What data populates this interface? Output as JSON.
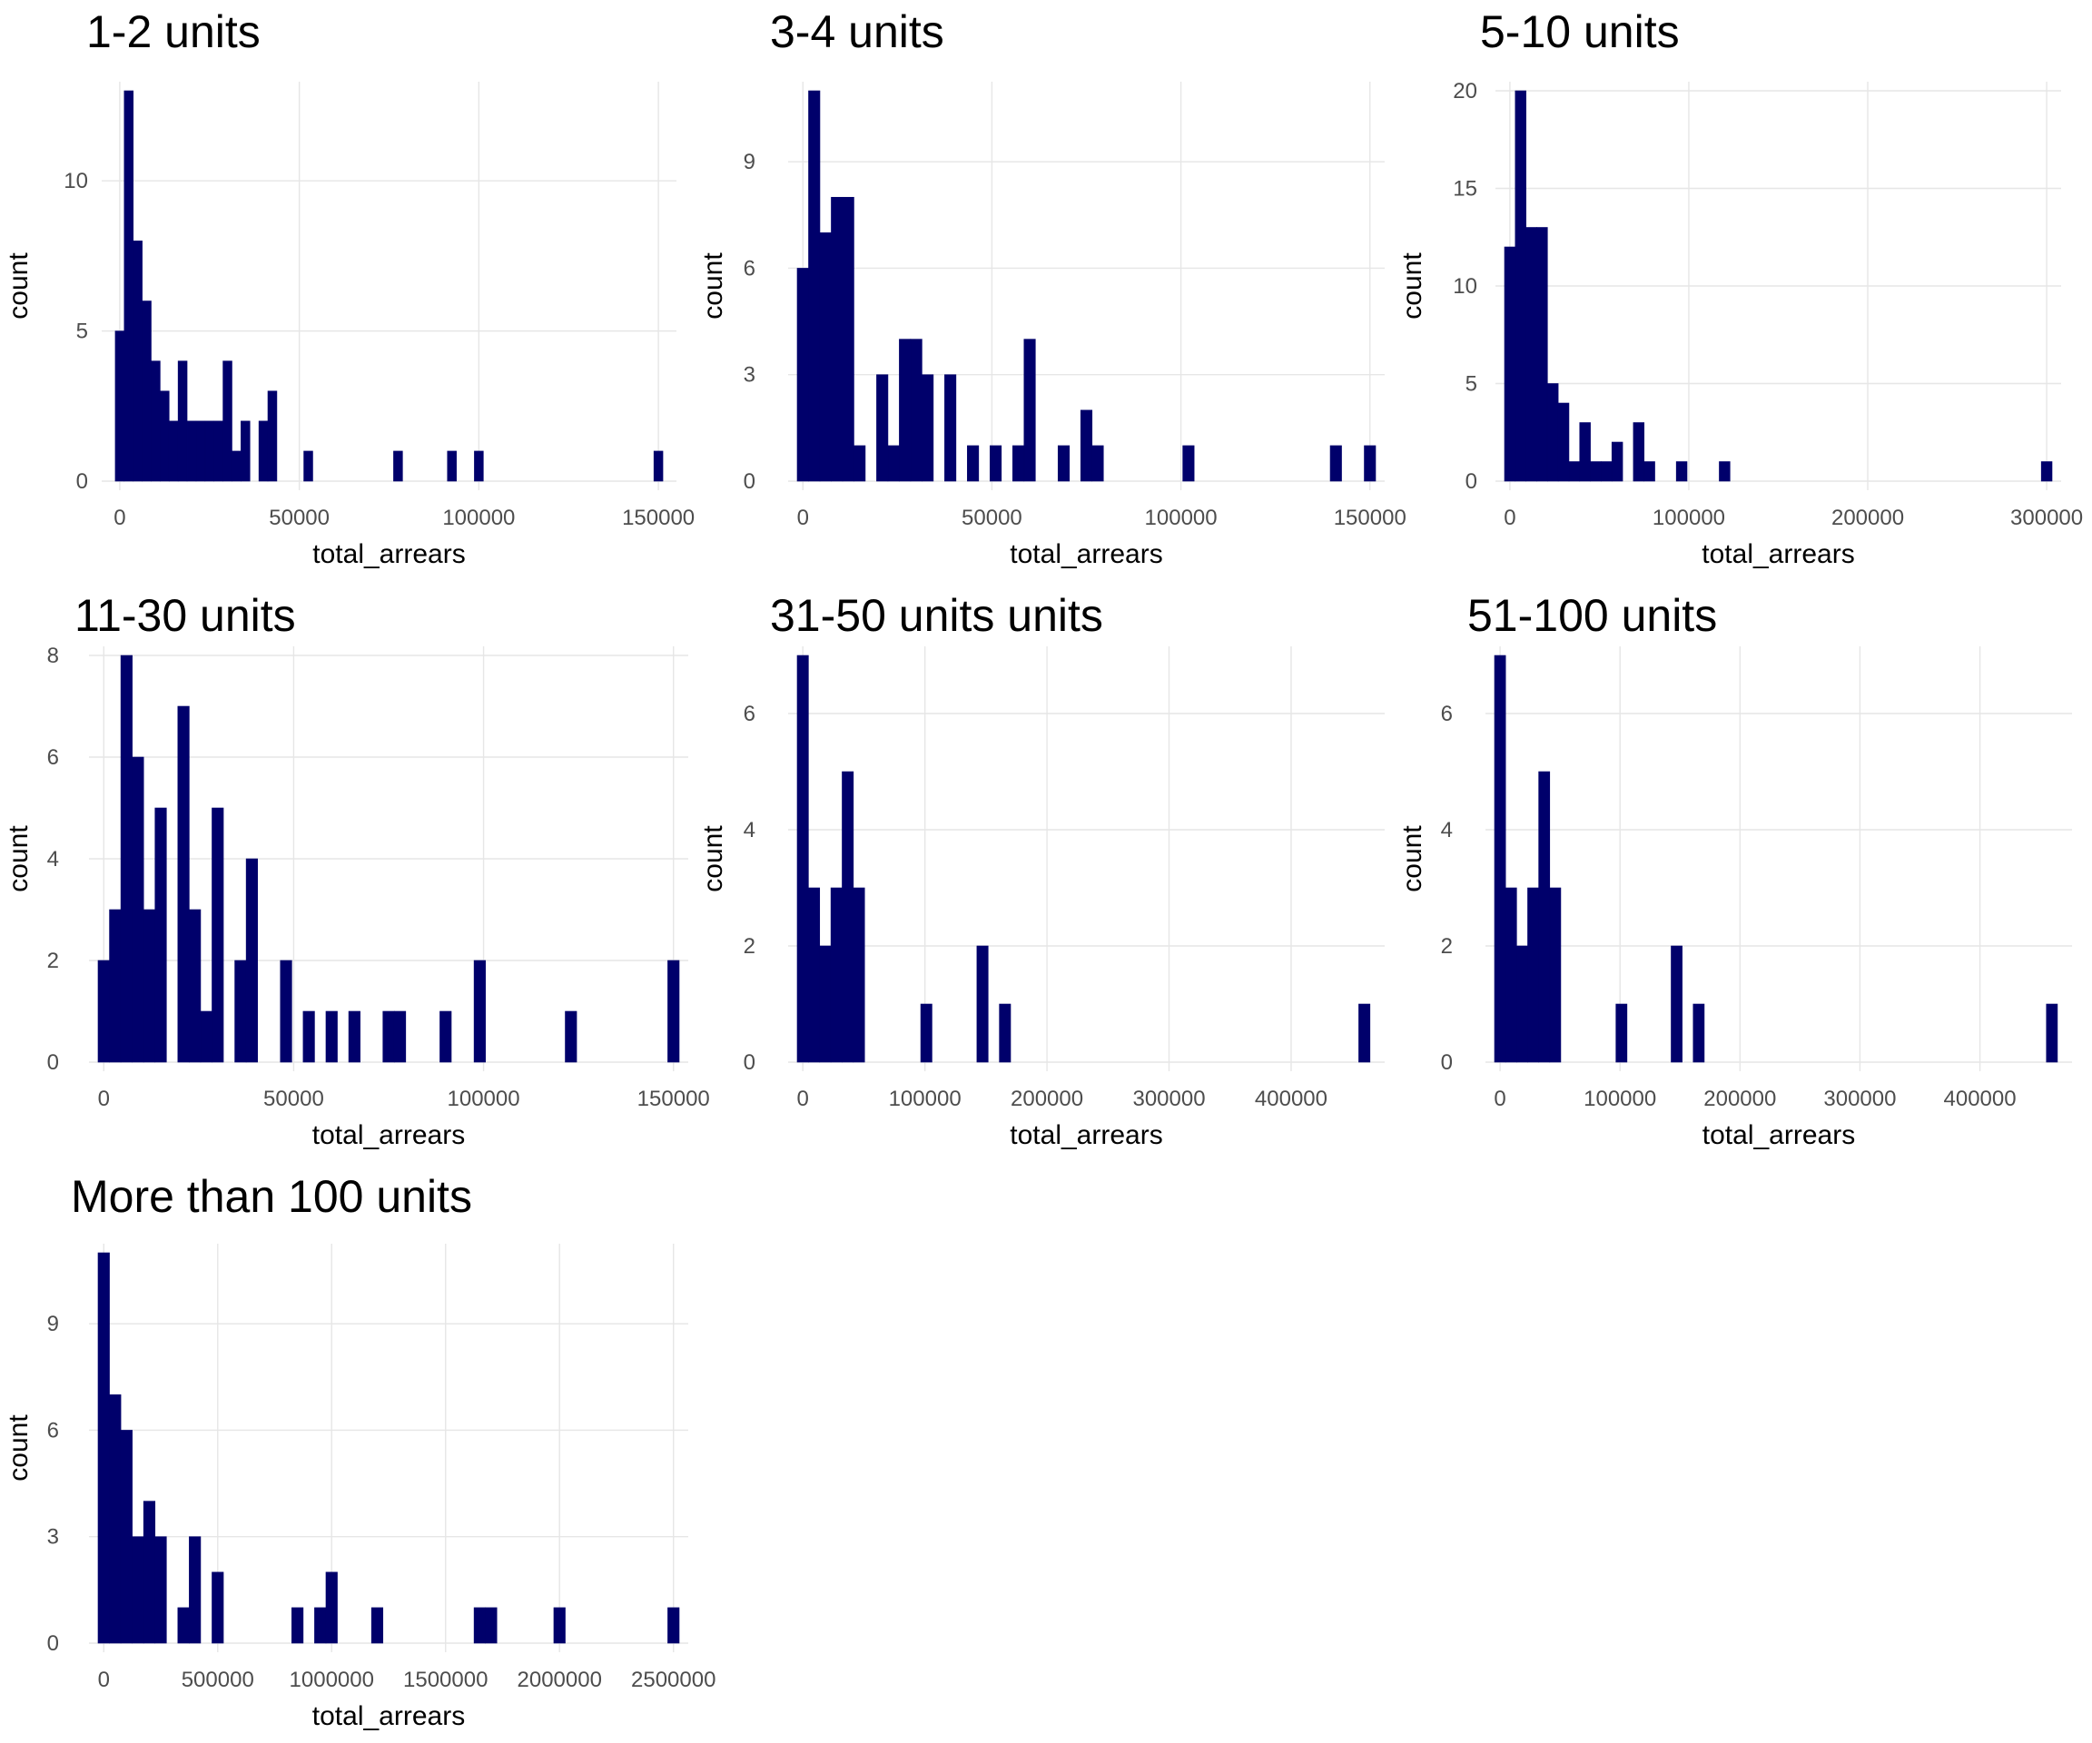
{
  "figure": {
    "bar_color": "#00006b",
    "grid_color": "#e6e6e6",
    "background": "#ffffff"
  },
  "chart_data": [
    {
      "type": "bar",
      "title": "1-2 units",
      "xlabel": "total_arrears",
      "ylabel": "count",
      "x_ticks": [
        0,
        50000,
        100000,
        150000
      ],
      "y_ticks": [
        0,
        5,
        10
      ],
      "xlim": [
        -2500,
        152500
      ],
      "ylim": [
        0,
        13
      ],
      "grid": true,
      "bin_width": 2500,
      "bins": [
        [
          0,
          5
        ],
        [
          2500,
          13
        ],
        [
          5000,
          8
        ],
        [
          7500,
          6
        ],
        [
          10000,
          4
        ],
        [
          12500,
          3
        ],
        [
          15000,
          2
        ],
        [
          17500,
          4
        ],
        [
          20000,
          2
        ],
        [
          22500,
          2
        ],
        [
          25000,
          2
        ],
        [
          27500,
          2
        ],
        [
          30000,
          4
        ],
        [
          32500,
          1
        ],
        [
          35000,
          2
        ],
        [
          40000,
          2
        ],
        [
          42500,
          3
        ],
        [
          52500,
          1
        ],
        [
          77500,
          1
        ],
        [
          92500,
          1
        ],
        [
          100000,
          1
        ],
        [
          150000,
          1
        ]
      ]
    },
    {
      "type": "bar",
      "title": "3-4 units",
      "xlabel": "total_arrears",
      "ylabel": "count",
      "x_ticks": [
        0,
        50000,
        100000,
        150000
      ],
      "y_ticks": [
        0,
        3,
        6,
        9
      ],
      "xlim": [
        -1500,
        151500
      ],
      "ylim": [
        0,
        11
      ],
      "grid": true,
      "bin_width": 3000,
      "bins": [
        [
          0,
          6
        ],
        [
          3000,
          11
        ],
        [
          6000,
          7
        ],
        [
          9000,
          8
        ],
        [
          12000,
          8
        ],
        [
          15000,
          1
        ],
        [
          21000,
          3
        ],
        [
          24000,
          1
        ],
        [
          27000,
          4
        ],
        [
          30000,
          4
        ],
        [
          33000,
          3
        ],
        [
          39000,
          3
        ],
        [
          45000,
          1
        ],
        [
          51000,
          1
        ],
        [
          57000,
          1
        ],
        [
          60000,
          4
        ],
        [
          69000,
          1
        ],
        [
          75000,
          2
        ],
        [
          78000,
          1
        ],
        [
          102000,
          1
        ],
        [
          141000,
          1
        ],
        [
          150000,
          1
        ]
      ]
    },
    {
      "type": "bar",
      "title": "5-10 units",
      "xlabel": "total_arrears",
      "ylabel": "count",
      "x_ticks": [
        0,
        100000,
        200000,
        300000
      ],
      "y_ticks": [
        0,
        5,
        10,
        15,
        20
      ],
      "xlim": [
        -3000,
        303000
      ],
      "ylim": [
        0,
        20
      ],
      "grid": true,
      "bin_width": 6000,
      "bins": [
        [
          0,
          12
        ],
        [
          6000,
          20
        ],
        [
          12000,
          13
        ],
        [
          18000,
          13
        ],
        [
          24000,
          5
        ],
        [
          30000,
          4
        ],
        [
          36000,
          1
        ],
        [
          42000,
          3
        ],
        [
          48000,
          1
        ],
        [
          54000,
          1
        ],
        [
          60000,
          2
        ],
        [
          72000,
          3
        ],
        [
          78000,
          1
        ],
        [
          96000,
          1
        ],
        [
          120000,
          1
        ],
        [
          300000,
          1
        ]
      ]
    },
    {
      "type": "bar",
      "title": "11-30 units",
      "xlabel": "total_arrears",
      "ylabel": "count",
      "x_ticks": [
        0,
        50000,
        100000,
        150000
      ],
      "y_ticks": [
        0,
        2,
        4,
        6,
        8
      ],
      "xlim": [
        -1500,
        151500
      ],
      "ylim": [
        0,
        8
      ],
      "grid": true,
      "bin_width": 3000,
      "bins": [
        [
          0,
          2
        ],
        [
          3000,
          3
        ],
        [
          6000,
          8
        ],
        [
          9000,
          6
        ],
        [
          12000,
          3
        ],
        [
          15000,
          5
        ],
        [
          21000,
          7
        ],
        [
          24000,
          3
        ],
        [
          27000,
          1
        ],
        [
          30000,
          5
        ],
        [
          36000,
          2
        ],
        [
          39000,
          4
        ],
        [
          48000,
          2
        ],
        [
          54000,
          1
        ],
        [
          60000,
          1
        ],
        [
          66000,
          1
        ],
        [
          75000,
          1
        ],
        [
          78000,
          1
        ],
        [
          90000,
          1
        ],
        [
          99000,
          2
        ],
        [
          123000,
          1
        ],
        [
          150000,
          2
        ]
      ]
    },
    {
      "type": "bar",
      "title": "31-50 units units",
      "xlabel": "total_arrears",
      "ylabel": "count",
      "x_ticks": [
        0,
        100000,
        200000,
        300000,
        400000
      ],
      "y_ticks": [
        0,
        2,
        4,
        6
      ],
      "xlim": [
        -4600,
        469200
      ],
      "ylim": [
        0,
        7
      ],
      "grid": true,
      "bin_width": 9200,
      "bins": [
        [
          0,
          7
        ],
        [
          9200,
          3
        ],
        [
          18400,
          2
        ],
        [
          27600,
          3
        ],
        [
          36800,
          5
        ],
        [
          46000,
          3
        ],
        [
          101200,
          1
        ],
        [
          147200,
          2
        ],
        [
          165600,
          1
        ],
        [
          460000,
          1
        ]
      ]
    },
    {
      "type": "bar",
      "title": "51-100 units",
      "xlabel": "total_arrears",
      "ylabel": "count",
      "x_ticks": [
        0,
        100000,
        200000,
        300000,
        400000
      ],
      "y_ticks": [
        0,
        2,
        4,
        6
      ],
      "xlim": [
        -4600,
        469200
      ],
      "ylim": [
        0,
        7
      ],
      "grid": true,
      "bin_width": 9200,
      "bins": [
        [
          0,
          7
        ],
        [
          9200,
          3
        ],
        [
          18400,
          2
        ],
        [
          27600,
          3
        ],
        [
          36800,
          5
        ],
        [
          46000,
          3
        ],
        [
          101200,
          1
        ],
        [
          147200,
          2
        ],
        [
          165600,
          1
        ],
        [
          460000,
          1
        ]
      ]
    },
    {
      "type": "bar",
      "title": "More than 100 units",
      "xlabel": "total_arrears",
      "ylabel": "count",
      "x_ticks": [
        0,
        500000,
        1000000,
        1500000,
        2000000,
        2500000
      ],
      "y_ticks": [
        0,
        3,
        6,
        9
      ],
      "xlim": [
        -25000,
        2525000
      ],
      "ylim": [
        0,
        11
      ],
      "grid": true,
      "bin_width": 50000,
      "bins": [
        [
          0,
          11
        ],
        [
          50000,
          7
        ],
        [
          100000,
          6
        ],
        [
          150000,
          3
        ],
        [
          200000,
          4
        ],
        [
          250000,
          3
        ],
        [
          350000,
          1
        ],
        [
          400000,
          3
        ],
        [
          500000,
          2
        ],
        [
          850000,
          1
        ],
        [
          950000,
          1
        ],
        [
          1000000,
          2
        ],
        [
          1200000,
          1
        ],
        [
          1650000,
          1
        ],
        [
          1700000,
          1
        ],
        [
          2000000,
          1
        ],
        [
          2500000,
          1
        ]
      ]
    }
  ]
}
